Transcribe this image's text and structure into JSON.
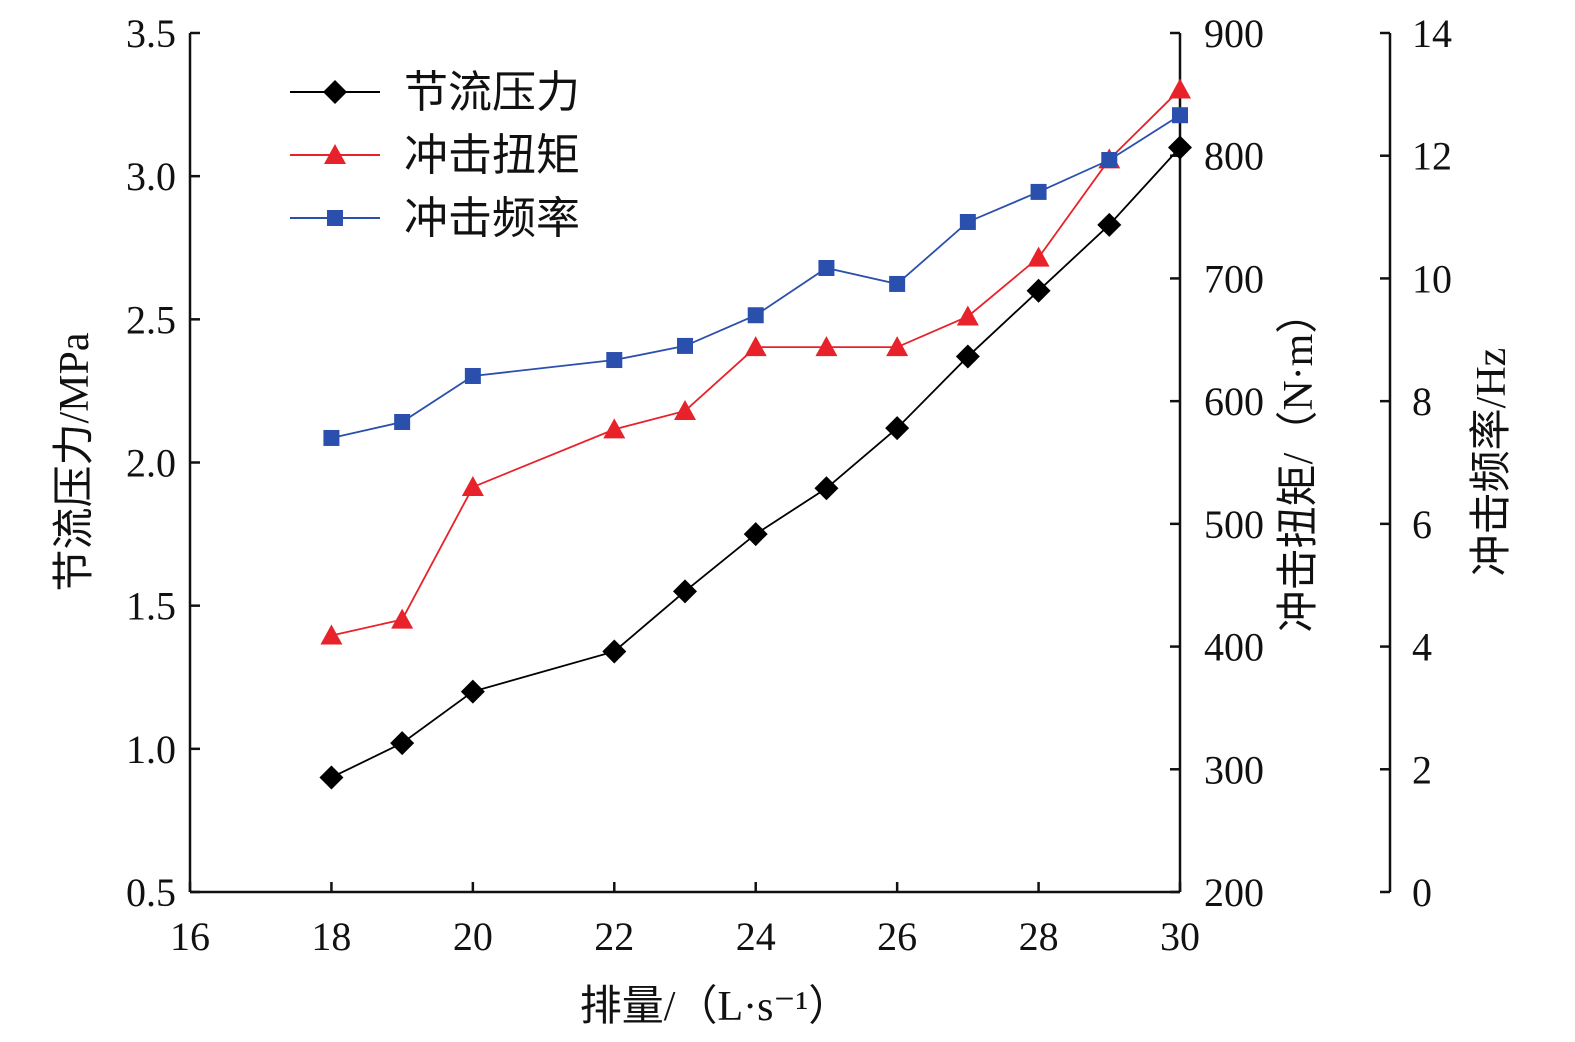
{
  "chart_data": {
    "type": "line",
    "title": "",
    "xlabel": "排量/（L·s⁻¹）",
    "x": [
      18,
      19,
      20,
      22,
      23,
      24,
      25,
      26,
      27,
      28,
      29,
      30
    ],
    "xlim": [
      16,
      30
    ],
    "xticks": [
      "16",
      "18",
      "20",
      "22",
      "24",
      "26",
      "28",
      "30"
    ],
    "axes": {
      "left": {
        "label": "节流压力/MPa",
        "lim": [
          0.5,
          3.5
        ],
        "ticks": [
          "0.5",
          "1.0",
          "1.5",
          "2.0",
          "2.5",
          "3.0",
          "3.5"
        ]
      },
      "right1": {
        "label": "冲击扭矩/（N·m）",
        "lim": [
          200,
          900
        ],
        "ticks": [
          "200",
          "300",
          "400",
          "500",
          "600",
          "700",
          "800",
          "900"
        ]
      },
      "right2": {
        "label": "冲击频率/Hz",
        "lim": [
          0,
          14
        ],
        "ticks": [
          "0",
          "2",
          "4",
          "6",
          "8",
          "10",
          "12",
          "14"
        ]
      }
    },
    "series": [
      {
        "name": "节流压力",
        "axis": "left",
        "color": "#000000",
        "marker": "diamond",
        "values": [
          0.9,
          1.02,
          1.2,
          1.34,
          1.55,
          1.75,
          1.91,
          2.12,
          2.37,
          2.6,
          2.83,
          3.1
        ]
      },
      {
        "name": "冲击扭矩",
        "axis": "right1",
        "color": "#e8222a",
        "marker": "triangle",
        "values": [
          409,
          422,
          530,
          577,
          592,
          644,
          644,
          644,
          669,
          717,
          797,
          854
        ]
      },
      {
        "name": "冲击频率",
        "axis": "right2",
        "color": "#2b4fad",
        "marker": "square",
        "values": [
          7.4,
          7.66,
          8.41,
          8.67,
          8.9,
          9.4,
          10.17,
          9.91,
          10.92,
          11.41,
          11.93,
          12.66
        ]
      }
    ],
    "legend": "top-left",
    "grid": false
  }
}
